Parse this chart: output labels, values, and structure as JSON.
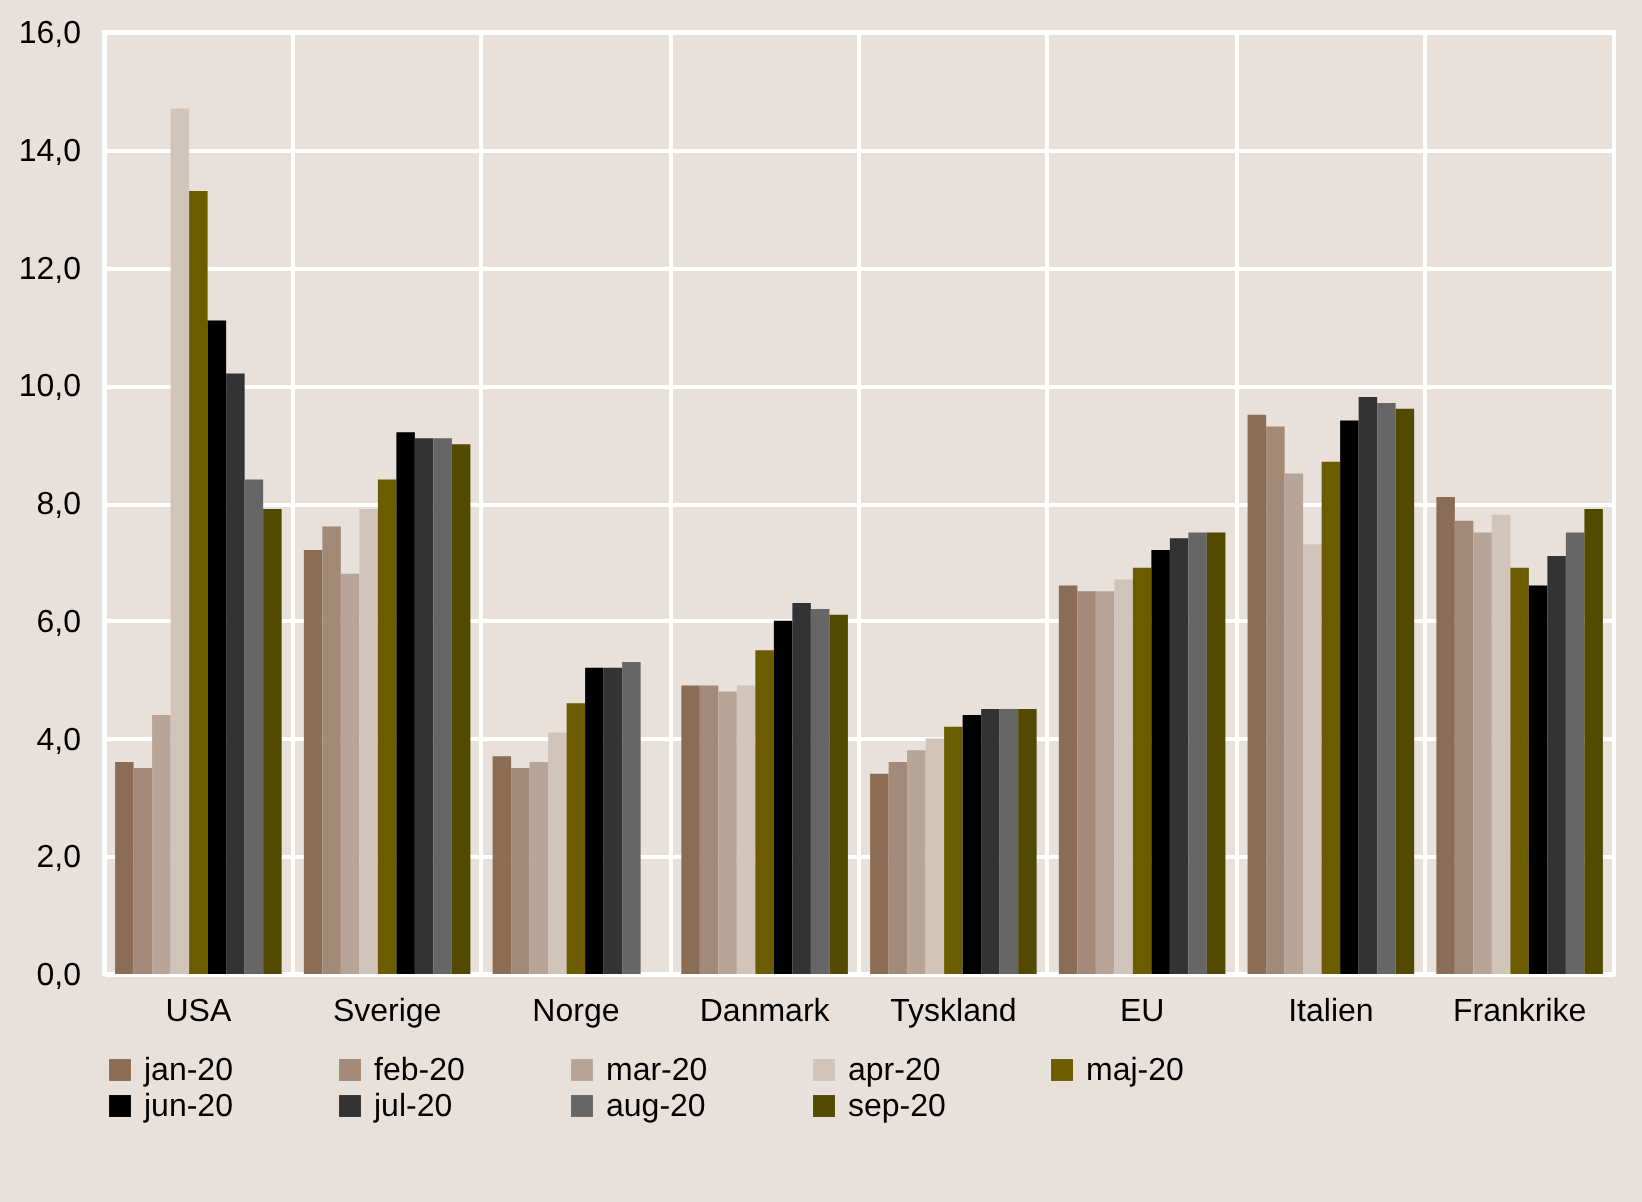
{
  "chart_data": {
    "type": "bar",
    "categories": [
      "USA",
      "Sverige",
      "Norge",
      "Danmark",
      "Tyskland",
      "EU",
      "Italien",
      "Frankrike"
    ],
    "series": [
      {
        "name": "jan-20",
        "color": "#8b6d55",
        "values": [
          3.6,
          7.2,
          3.7,
          4.9,
          3.4,
          6.6,
          9.5,
          8.1
        ]
      },
      {
        "name": "feb-20",
        "color": "#a38a78",
        "values": [
          3.5,
          7.6,
          3.5,
          4.9,
          3.6,
          6.5,
          9.3,
          7.7
        ]
      },
      {
        "name": "mar-20",
        "color": "#b8a597",
        "values": [
          4.4,
          6.8,
          3.6,
          4.8,
          3.8,
          6.5,
          8.5,
          7.5
        ]
      },
      {
        "name": "apr-20",
        "color": "#d1c4ba",
        "values": [
          14.7,
          7.9,
          4.1,
          4.9,
          4.0,
          6.7,
          7.3,
          7.8
        ]
      },
      {
        "name": "maj-20",
        "color": "#6b5c00",
        "values": [
          13.3,
          8.4,
          4.6,
          5.5,
          4.2,
          6.9,
          8.7,
          6.9
        ]
      },
      {
        "name": "jun-20",
        "color": "#000000",
        "values": [
          11.1,
          9.2,
          5.2,
          6.0,
          4.4,
          7.2,
          9.4,
          6.6
        ]
      },
      {
        "name": "jul-20",
        "color": "#333333",
        "values": [
          10.2,
          9.1,
          5.2,
          6.3,
          4.5,
          7.4,
          9.8,
          7.1
        ]
      },
      {
        "name": "aug-20",
        "color": "#666666",
        "values": [
          8.4,
          9.1,
          5.3,
          6.2,
          4.5,
          7.5,
          9.7,
          7.5
        ]
      },
      {
        "name": "sep-20",
        "color": "#524a00",
        "values": [
          7.9,
          9.0,
          null,
          6.1,
          4.5,
          7.5,
          9.6,
          7.9
        ]
      }
    ],
    "ylim": [
      0,
      16
    ],
    "yticks": [
      {
        "value": 0,
        "label": "0,0"
      },
      {
        "value": 2,
        "label": "2,0"
      },
      {
        "value": 4,
        "label": "4,0"
      },
      {
        "value": 6,
        "label": "6,0"
      },
      {
        "value": 8,
        "label": "8,0"
      },
      {
        "value": 10,
        "label": "10,0"
      },
      {
        "value": 12,
        "label": "12,0"
      },
      {
        "value": 14,
        "label": "14,0"
      },
      {
        "value": 16,
        "label": "16,0"
      }
    ],
    "grid": true,
    "legend": "bottom"
  }
}
